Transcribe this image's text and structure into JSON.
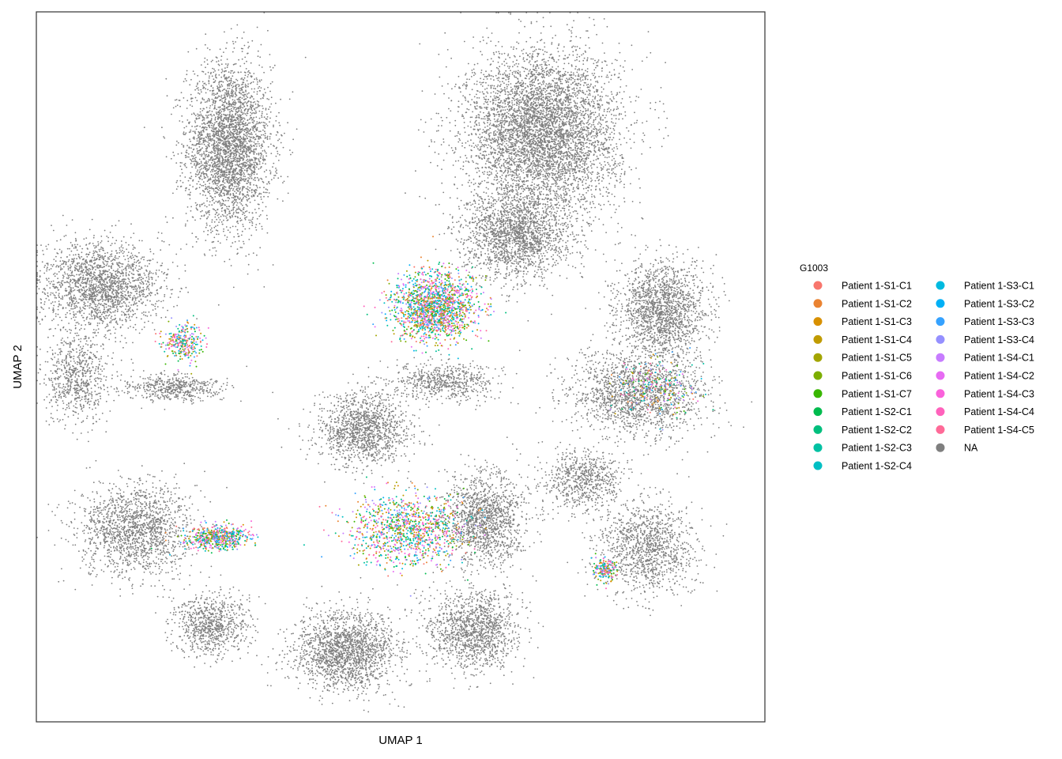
{
  "chart_data": {
    "type": "scatter",
    "title": "",
    "xlabel": "UMAP 1",
    "ylabel": "UMAP 2",
    "xlim": [
      -10,
      10
    ],
    "ylim": [
      -10,
      10
    ],
    "grid": false,
    "axis_ticks_shown": false,
    "legend": {
      "title": "G1003",
      "placement": "right",
      "columns": 2
    },
    "na_color": "#7f7f7f",
    "series": [
      {
        "name": "Patient 1-S1-C1",
        "color": "#F8766D"
      },
      {
        "name": "Patient 1-S1-C2",
        "color": "#EA8331"
      },
      {
        "name": "Patient 1-S1-C3",
        "color": "#D89000"
      },
      {
        "name": "Patient 1-S1-C4",
        "color": "#C09B00"
      },
      {
        "name": "Patient 1-S1-C5",
        "color": "#A3A500"
      },
      {
        "name": "Patient 1-S1-C6",
        "color": "#7CAE00"
      },
      {
        "name": "Patient 1-S1-C7",
        "color": "#39B600"
      },
      {
        "name": "Patient 1-S2-C1",
        "color": "#00BB4E"
      },
      {
        "name": "Patient 1-S2-C2",
        "color": "#00BF7D"
      },
      {
        "name": "Patient 1-S2-C3",
        "color": "#00C1A3"
      },
      {
        "name": "Patient 1-S2-C4",
        "color": "#00BFC4"
      },
      {
        "name": "Patient 1-S3-C1",
        "color": "#00BAE0"
      },
      {
        "name": "Patient 1-S3-C2",
        "color": "#00B0F6"
      },
      {
        "name": "Patient 1-S3-C3",
        "color": "#35A2FF"
      },
      {
        "name": "Patient 1-S3-C4",
        "color": "#9590FF"
      },
      {
        "name": "Patient 1-S4-C1",
        "color": "#C77CFF"
      },
      {
        "name": "Patient 1-S4-C2",
        "color": "#E76BF3"
      },
      {
        "name": "Patient 1-S4-C3",
        "color": "#FA62DB"
      },
      {
        "name": "Patient 1-S4-C4",
        "color": "#FF62BC"
      },
      {
        "name": "Patient 1-S4-C5",
        "color": "#FF6A98"
      },
      {
        "name": "NA",
        "color": "#7f7f7f"
      }
    ],
    "na_clusters": [
      {
        "cx": -4.7,
        "cy": 6.2,
        "sx": 1.05,
        "sy": 2.1,
        "n": 3200
      },
      {
        "cx": 3.9,
        "cy": 6.6,
        "sx": 1.9,
        "sy": 2.1,
        "n": 5200
      },
      {
        "cx": 3.2,
        "cy": 3.7,
        "sx": 1.3,
        "sy": 1.1,
        "n": 1800
      },
      {
        "cx": 7.2,
        "cy": 1.6,
        "sx": 1.1,
        "sy": 1.2,
        "n": 1700
      },
      {
        "cx": 6.5,
        "cy": -0.8,
        "sx": 1.7,
        "sy": 1.1,
        "n": 1700
      },
      {
        "cx": -8.2,
        "cy": 2.3,
        "sx": 1.5,
        "sy": 1.1,
        "n": 1900
      },
      {
        "cx": -8.9,
        "cy": -0.3,
        "sx": 0.8,
        "sy": 1.1,
        "n": 700
      },
      {
        "cx": -6.3,
        "cy": -0.6,
        "sx": 1.2,
        "sy": 0.35,
        "n": 500
      },
      {
        "cx": -7.3,
        "cy": -4.6,
        "sx": 1.4,
        "sy": 1.2,
        "n": 1600
      },
      {
        "cx": -5.2,
        "cy": -7.3,
        "sx": 0.9,
        "sy": 0.8,
        "n": 800
      },
      {
        "cx": -1.5,
        "cy": -8.0,
        "sx": 1.3,
        "sy": 1.0,
        "n": 1800
      },
      {
        "cx": 2.0,
        "cy": -7.4,
        "sx": 1.1,
        "sy": 1.0,
        "n": 1300
      },
      {
        "cx": 2.3,
        "cy": -4.3,
        "sx": 1.0,
        "sy": 1.2,
        "n": 1400
      },
      {
        "cx": -1.0,
        "cy": -1.8,
        "sx": 1.1,
        "sy": 0.9,
        "n": 1300
      },
      {
        "cx": 6.8,
        "cy": -5.1,
        "sx": 1.2,
        "sy": 1.2,
        "n": 1200
      },
      {
        "cx": 5.0,
        "cy": -3.2,
        "sx": 1.0,
        "sy": 0.8,
        "n": 700
      },
      {
        "cx": 1.2,
        "cy": -0.4,
        "sx": 1.3,
        "sy": 0.5,
        "n": 600
      }
    ],
    "colored_clusters": [
      {
        "cx": 0.9,
        "cy": 1.7,
        "sx": 1.15,
        "sy": 0.95,
        "n": 1600
      },
      {
        "cx": 0.2,
        "cy": -4.6,
        "sx": 1.6,
        "sy": 1.0,
        "n": 1100
      },
      {
        "cx": -5.0,
        "cy": -4.8,
        "sx": 0.9,
        "sy": 0.35,
        "n": 550
      },
      {
        "cx": -6.0,
        "cy": 0.7,
        "sx": 0.55,
        "sy": 0.5,
        "n": 280
      },
      {
        "cx": 5.6,
        "cy": -5.7,
        "sx": 0.35,
        "sy": 0.35,
        "n": 180
      },
      {
        "cx": 7.0,
        "cy": -0.6,
        "sx": 1.1,
        "sy": 0.8,
        "n": 220
      }
    ]
  }
}
